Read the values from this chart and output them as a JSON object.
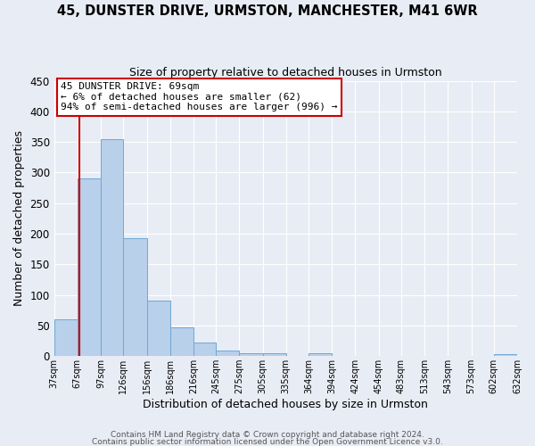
{
  "title": "45, DUNSTER DRIVE, URMSTON, MANCHESTER, M41 6WR",
  "subtitle": "Size of property relative to detached houses in Urmston",
  "xlabel": "Distribution of detached houses by size in Urmston",
  "ylabel": "Number of detached properties",
  "bar_edges": [
    37,
    67,
    97,
    126,
    156,
    186,
    216,
    245,
    275,
    305,
    335,
    364,
    394,
    424,
    454,
    483,
    513,
    543,
    573,
    602,
    632
  ],
  "bar_heights": [
    60,
    290,
    355,
    192,
    90,
    47,
    22,
    9,
    4,
    4,
    0,
    4,
    0,
    0,
    0,
    0,
    0,
    0,
    0,
    3
  ],
  "tick_labels": [
    "37sqm",
    "67sqm",
    "97sqm",
    "126sqm",
    "156sqm",
    "186sqm",
    "216sqm",
    "245sqm",
    "275sqm",
    "305sqm",
    "335sqm",
    "364sqm",
    "394sqm",
    "424sqm",
    "454sqm",
    "483sqm",
    "513sqm",
    "543sqm",
    "573sqm",
    "602sqm",
    "632sqm"
  ],
  "bar_color": "#b8d0ea",
  "bar_edge_color": "#6fa8d6",
  "vline_x": 69,
  "vline_color": "#cc0000",
  "annotation_box_text": "45 DUNSTER DRIVE: 69sqm\n← 6% of detached houses are smaller (62)\n94% of semi-detached houses are larger (996) →",
  "annotation_box_color": "#cc0000",
  "annotation_box_fill": "#ffffff",
  "ylim": [
    0,
    450
  ],
  "yticks": [
    0,
    50,
    100,
    150,
    200,
    250,
    300,
    350,
    400,
    450
  ],
  "bg_color": "#e8ecf5",
  "grid_color": "#ffffff",
  "footer1": "Contains HM Land Registry data © Crown copyright and database right 2024.",
  "footer2": "Contains public sector information licensed under the Open Government Licence v3.0."
}
